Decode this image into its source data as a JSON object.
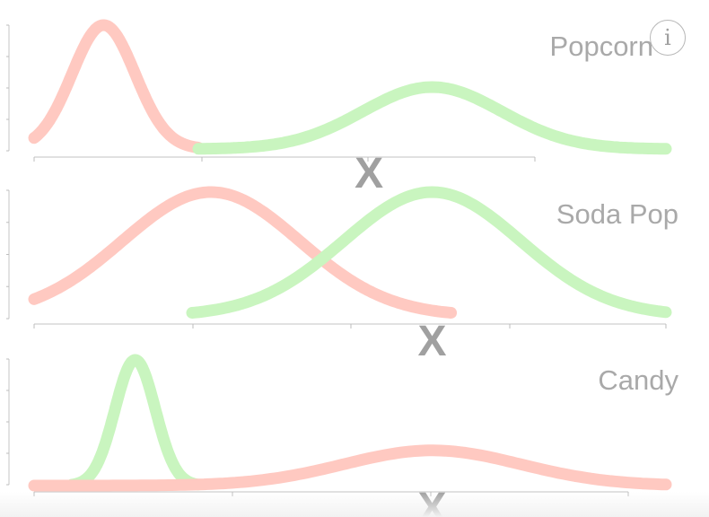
{
  "chart_data": [
    {
      "type": "line",
      "title": "Popcorn",
      "marker": "X",
      "x_domain": [
        0,
        100
      ],
      "series": [
        {
          "color": "#ffc9c1",
          "x_range": [
            0,
            26
          ],
          "peak_x": 11,
          "spread": 5,
          "peak": 1.0,
          "baseline": 0.0
        },
        {
          "color": "#c9f5bf",
          "x_range": [
            26,
            100
          ],
          "peak_x": 63,
          "spread": 11,
          "peak": 0.5,
          "baseline": 0.0
        }
      ],
      "marker_x": 53
    },
    {
      "type": "line",
      "title": "Soda Pop",
      "marker": "X",
      "x_domain": [
        0,
        100
      ],
      "series": [
        {
          "color": "#ffc9c1",
          "x_range": [
            0,
            66
          ],
          "peak_x": 28,
          "spread": 14,
          "peak": 1.0,
          "baseline": 0.0
        },
        {
          "color": "#c9f5bf",
          "x_range": [
            25,
            100
          ],
          "peak_x": 63,
          "spread": 14,
          "peak": 1.0,
          "baseline": 0.0
        }
      ],
      "marker_x": 63
    },
    {
      "type": "line",
      "title": "Candy",
      "marker": "X",
      "x_domain": [
        0,
        100
      ],
      "series": [
        {
          "color": "#c9f5bf",
          "x_range": [
            6,
            26
          ],
          "peak_x": 16,
          "spread": 3.2,
          "peak": 1.0,
          "baseline": 0.0
        },
        {
          "color": "#ffc9c1",
          "x_range": [
            0,
            100
          ],
          "peak_x": 63,
          "spread": 14,
          "peak": 0.28,
          "baseline": 0.0
        }
      ],
      "marker_x": 63
    }
  ],
  "info_button": {
    "icon": "info-icon",
    "glyph": "i"
  }
}
